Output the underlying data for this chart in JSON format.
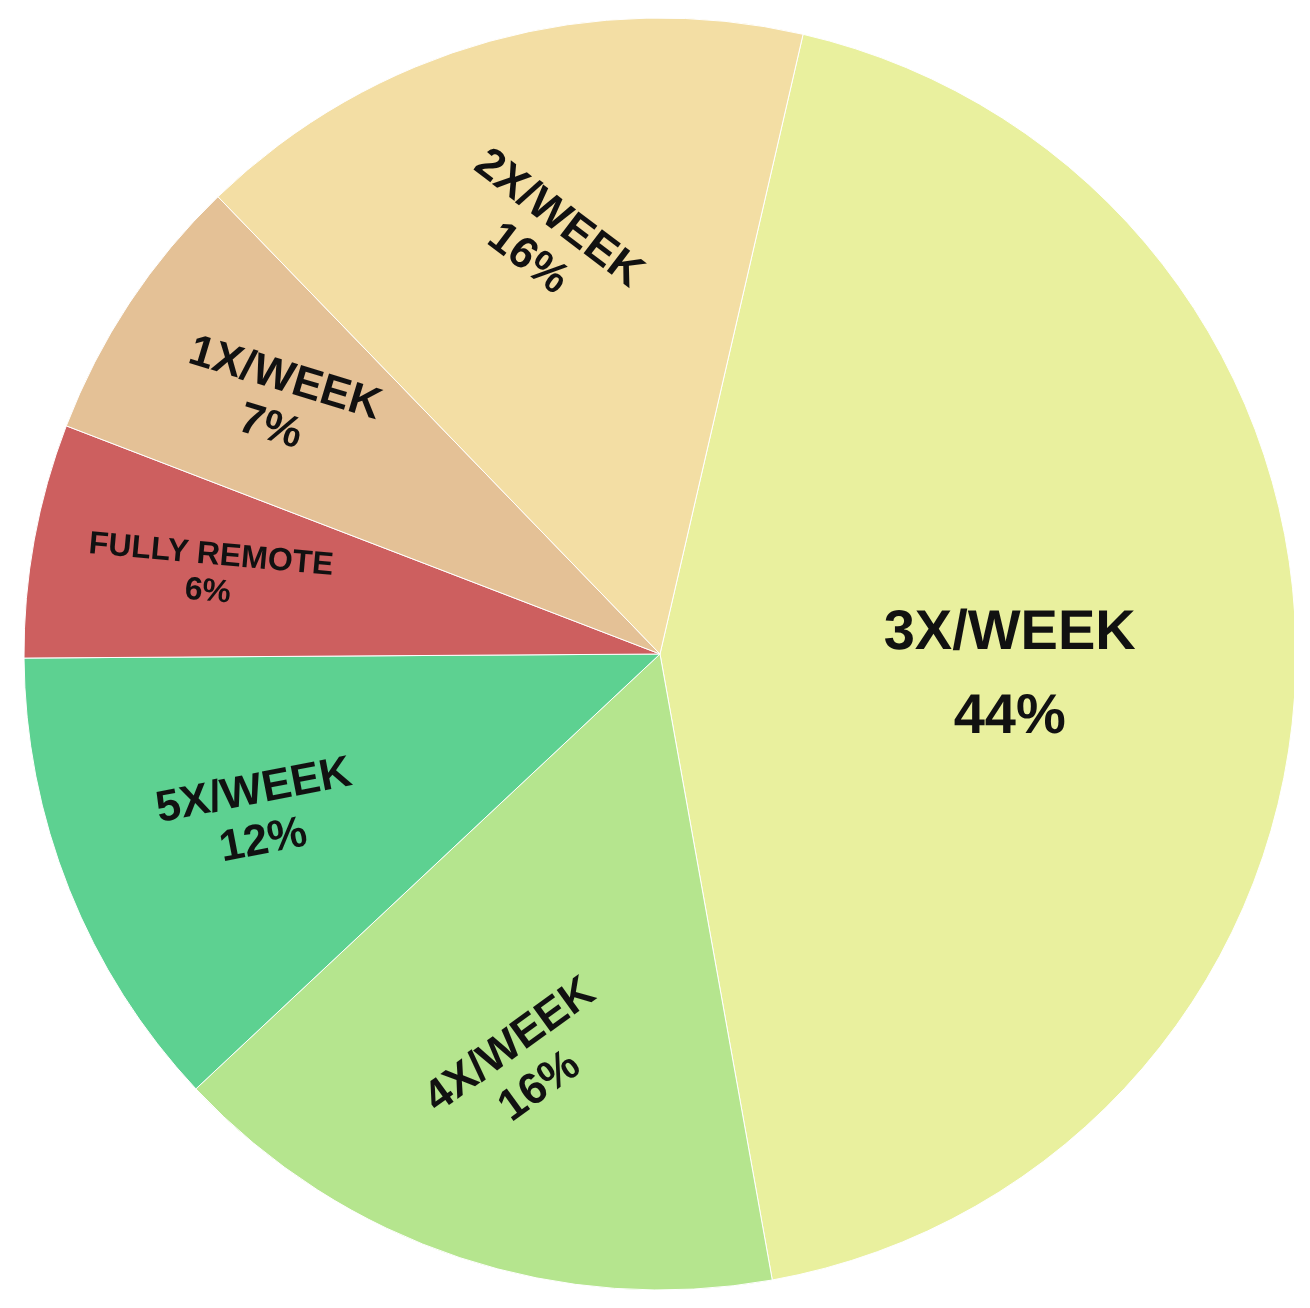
{
  "chart_data": {
    "type": "pie",
    "categories": [
      "3X/WEEK",
      "4X/WEEK",
      "5X/WEEK",
      "FULLY REMOTE",
      "1X/WEEK",
      "2X/WEEK"
    ],
    "values": [
      44,
      16,
      12,
      6,
      7,
      16
    ],
    "value_labels": [
      "44%",
      "16%",
      "12%",
      "6%",
      "7%",
      "16%"
    ],
    "colors": [
      "#e9f09e",
      "#b5e58e",
      "#5dd191",
      "#cd5f5f",
      "#e4c196",
      "#f3dea4"
    ]
  }
}
